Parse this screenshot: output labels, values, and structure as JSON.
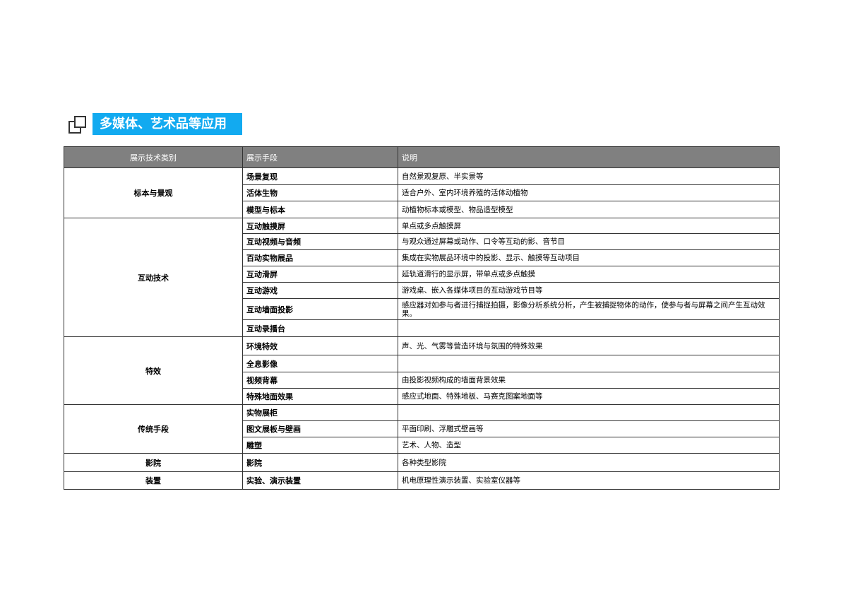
{
  "title": "多媒体、艺术品等应用",
  "table": {
    "headers": [
      "展示技术类别",
      "展示手段",
      "说明"
    ],
    "groups": [
      {
        "category": "标本与景观",
        "rows": [
          {
            "method": "场景复现",
            "desc": "自然景观复原、半实景等"
          },
          {
            "method": "活体生物",
            "desc": "适合户外、室内环境养殖的活体动植物"
          },
          {
            "method": "模型与标本",
            "desc": "动植物标本或模型、物品造型模型"
          }
        ]
      },
      {
        "category": "互动技术",
        "rows": [
          {
            "method": "互动触摸屏",
            "desc": "单点或多点触摸屏"
          },
          {
            "method": "互动视频与音频",
            "desc": "与观众通过屏幕或动作、口令等互动的影、音节目"
          },
          {
            "method": "百动实物展品",
            "desc": "集成在实物展品环境中的投影、显示、触摸等互动项目"
          },
          {
            "method": "互动滑屏",
            "desc": "延轨道滑行的显示屏，带单点或多点触摸"
          },
          {
            "method": "互动游戏",
            "desc": "游戏桌、嵌入各媒体项目的互动游戏节目等"
          },
          {
            "method": "互动墙面投影",
            "desc": "感应器对如参与者进行捕捉拍摄，影像分析系统分析，产生被捕捉物体的动作，使参与者与屏幕之间产生互动效果。"
          },
          {
            "method": "互动录播台",
            "desc": ""
          }
        ]
      },
      {
        "category": "特效",
        "rows": [
          {
            "method": "环境特效",
            "desc": "声、光、气雾等营造环境与氛围的特殊效果"
          },
          {
            "method": "全息影像",
            "desc": ""
          },
          {
            "method": "视频背幕",
            "desc": "由投影视频构成的墙面背景效果"
          },
          {
            "method": "特殊地面效果",
            "desc": "感应式地面、特殊地板、马赛克图案地面等"
          }
        ]
      },
      {
        "category": "传统手段",
        "rows": [
          {
            "method": "实物展柜",
            "desc": ""
          },
          {
            "method": "图文展板与壁画",
            "desc": "平面印刷、浮雕式壁画等"
          },
          {
            "method": "雕塑",
            "desc": "艺术、人物、造型"
          }
        ]
      },
      {
        "category": "影院",
        "rows": [
          {
            "method": "影院",
            "desc": "各种类型影院"
          }
        ]
      },
      {
        "category": "装置",
        "rows": [
          {
            "method": "实验、演示装置",
            "desc": "机电原理性演示装置、实验室仪器等"
          }
        ]
      }
    ]
  }
}
